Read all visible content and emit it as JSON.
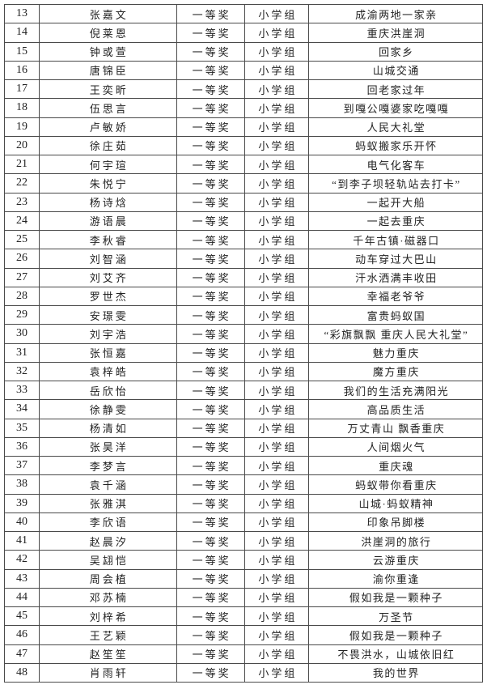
{
  "page": {
    "background_color": "#ffffff",
    "text_color": "#222222",
    "table_border_color": "#4a4a4a"
  },
  "table": {
    "columns": [
      "no",
      "name",
      "award",
      "group",
      "title"
    ],
    "rows": [
      {
        "no": "13",
        "name": "张嘉文",
        "award": "一等奖",
        "group": "小学组",
        "title": "成渝两地一家亲"
      },
      {
        "no": "14",
        "name": "倪莱恩",
        "award": "一等奖",
        "group": "小学组",
        "title": "重庆洪崖洞"
      },
      {
        "no": "15",
        "name": "钟或萱",
        "award": "一等奖",
        "group": "小学组",
        "title": "回家乡"
      },
      {
        "no": "16",
        "name": "唐锦臣",
        "award": "一等奖",
        "group": "小学组",
        "title": "山城交通"
      },
      {
        "no": "17",
        "name": "王奕昕",
        "award": "一等奖",
        "group": "小学组",
        "title": "回老家过年"
      },
      {
        "no": "18",
        "name": "伍思言",
        "award": "一等奖",
        "group": "小学组",
        "title": "到嘎公嘎婆家吃嘎嘎"
      },
      {
        "no": "19",
        "name": "卢敏娇",
        "award": "一等奖",
        "group": "小学组",
        "title": "人民大礼堂"
      },
      {
        "no": "20",
        "name": "徐庄茹",
        "award": "一等奖",
        "group": "小学组",
        "title": "蚂蚁搬家乐开怀"
      },
      {
        "no": "21",
        "name": "何宇瑄",
        "award": "一等奖",
        "group": "小学组",
        "title": "电气化客车"
      },
      {
        "no": "22",
        "name": "朱悦宁",
        "award": "一等奖",
        "group": "小学组",
        "title": "“到李子坝轻轨站去打卡”"
      },
      {
        "no": "23",
        "name": "杨诗焓",
        "award": "一等奖",
        "group": "小学组",
        "title": "一起开大船"
      },
      {
        "no": "24",
        "name": "游语晨",
        "award": "一等奖",
        "group": "小学组",
        "title": "一起去重庆"
      },
      {
        "no": "25",
        "name": "李秋睿",
        "award": "一等奖",
        "group": "小学组",
        "title": "千年古镇·磁器口"
      },
      {
        "no": "26",
        "name": "刘智涵",
        "award": "一等奖",
        "group": "小学组",
        "title": "动车穿过大巴山"
      },
      {
        "no": "27",
        "name": "刘艾齐",
        "award": "一等奖",
        "group": "小学组",
        "title": "汗水洒满丰收田"
      },
      {
        "no": "28",
        "name": "罗世杰",
        "award": "一等奖",
        "group": "小学组",
        "title": "幸福老爷爷"
      },
      {
        "no": "29",
        "name": "安璟雯",
        "award": "一等奖",
        "group": "小学组",
        "title": "富贵蚂蚁国"
      },
      {
        "no": "30",
        "name": "刘宇浩",
        "award": "一等奖",
        "group": "小学组",
        "title": "“彩旗飘飘 重庆人民大礼堂”"
      },
      {
        "no": "31",
        "name": "张恒嘉",
        "award": "一等奖",
        "group": "小学组",
        "title": "魅力重庆"
      },
      {
        "no": "32",
        "name": "袁梓皓",
        "award": "一等奖",
        "group": "小学组",
        "title": "魔方重庆"
      },
      {
        "no": "33",
        "name": "岳欣怡",
        "award": "一等奖",
        "group": "小学组",
        "title": "我们的生活充满阳光"
      },
      {
        "no": "34",
        "name": "徐静雯",
        "award": "一等奖",
        "group": "小学组",
        "title": "高品质生活"
      },
      {
        "no": "35",
        "name": "杨清如",
        "award": "一等奖",
        "group": "小学组",
        "title": "万丈青山 飘香重庆"
      },
      {
        "no": "36",
        "name": "张昊洋",
        "award": "一等奖",
        "group": "小学组",
        "title": "人间烟火气"
      },
      {
        "no": "37",
        "name": "李梦言",
        "award": "一等奖",
        "group": "小学组",
        "title": "重庆魂"
      },
      {
        "no": "38",
        "name": "袁千涵",
        "award": "一等奖",
        "group": "小学组",
        "title": "蚂蚁带你看重庆"
      },
      {
        "no": "39",
        "name": "张雅淇",
        "award": "一等奖",
        "group": "小学组",
        "title": "山城·蚂蚁精神"
      },
      {
        "no": "40",
        "name": "李欣语",
        "award": "一等奖",
        "group": "小学组",
        "title": "印象吊脚楼"
      },
      {
        "no": "41",
        "name": "赵晨汐",
        "award": "一等奖",
        "group": "小学组",
        "title": "洪崖洞的旅行"
      },
      {
        "no": "42",
        "name": "吴翃恺",
        "award": "一等奖",
        "group": "小学组",
        "title": "云游重庆"
      },
      {
        "no": "43",
        "name": "周会植",
        "award": "一等奖",
        "group": "小学组",
        "title": "渝你重逢"
      },
      {
        "no": "44",
        "name": "邓苏楠",
        "award": "一等奖",
        "group": "小学组",
        "title": "假如我是一颗种子"
      },
      {
        "no": "45",
        "name": "刘梓希",
        "award": "一等奖",
        "group": "小学组",
        "title": "万圣节"
      },
      {
        "no": "46",
        "name": "王艺颖",
        "award": "一等奖",
        "group": "小学组",
        "title": "假如我是一颗种子"
      },
      {
        "no": "47",
        "name": "赵笙笙",
        "award": "一等奖",
        "group": "小学组",
        "title": "不畏洪水，山城依旧红"
      },
      {
        "no": "48",
        "name": "肖雨轩",
        "award": "一等奖",
        "group": "小学组",
        "title": "我的世界"
      }
    ]
  }
}
